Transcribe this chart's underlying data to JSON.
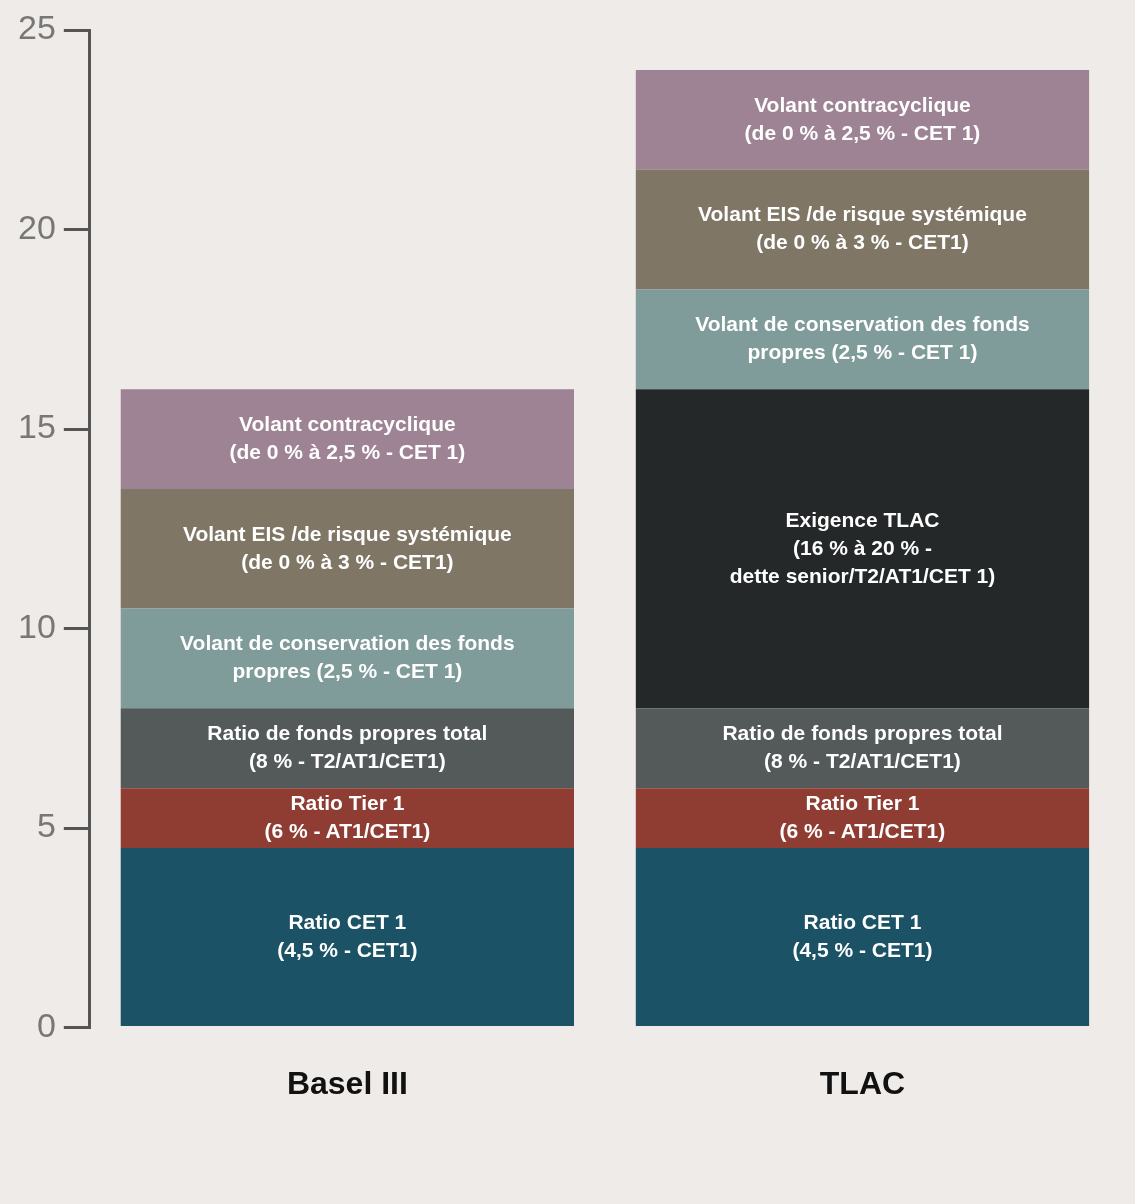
{
  "chart_data": {
    "type": "bar",
    "stacked": true,
    "categories": [
      "Basel III",
      "TLAC"
    ],
    "ylim": [
      0,
      25
    ],
    "yticks": [
      0,
      5,
      10,
      15,
      20,
      25
    ],
    "grid": false,
    "series": [
      {
        "name": "Ratio CET 1\n(4,5 % - CET1)",
        "color": "#1b5266",
        "values": [
          4.5,
          4.5
        ]
      },
      {
        "name": "Ratio Tier 1\n(6 % - AT1/CET1)",
        "color": "#8f3d33",
        "values": [
          1.5,
          1.5
        ]
      },
      {
        "name": "Ratio de fonds propres total\n(8 % - T2/AT1/CET1)",
        "color": "#545a5a",
        "values": [
          2,
          2
        ]
      },
      {
        "name": "Exigence TLAC\n(16 % à 20 % -\ndette senior/T2/AT1/CET 1)",
        "color": "#252828",
        "values": [
          null,
          8
        ]
      },
      {
        "name": "Volant de conservation des fonds\npropres (2,5 % - CET 1)",
        "color": "#7f9b9a",
        "values": [
          2.5,
          2.5
        ]
      },
      {
        "name": "Volant EIS /de risque systémique\n(de 0 % à 3 % - CET1)",
        "color": "#7f7666",
        "values": [
          3,
          3
        ]
      },
      {
        "name": "Volant contracyclique\n(de 0 % à 2,5 % - CET 1)",
        "color": "#9d8393",
        "values": [
          2.5,
          2.5
        ]
      }
    ]
  }
}
